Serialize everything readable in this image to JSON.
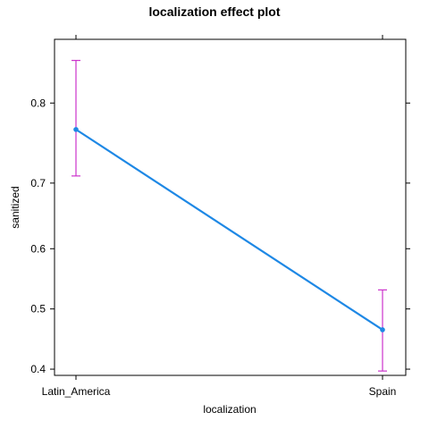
{
  "chart_data": {
    "type": "line",
    "title": "localization effect plot",
    "xlabel": "localization",
    "ylabel": "sanitized",
    "categories": [
      "Latin_America",
      "Spain"
    ],
    "series": [
      {
        "values": [
          0.77,
          0.465
        ],
        "lower": [
          0.71,
          0.397
        ],
        "upper": [
          0.842,
          0.532
        ]
      }
    ],
    "y_ticks": [
      0.4,
      0.5,
      0.6,
      0.7,
      0.8
    ],
    "y_tick_labels": [
      "0.4",
      "0.5",
      "0.6",
      "0.7",
      "0.8"
    ],
    "y_scale": "logit",
    "ylim": [
      0.39,
      0.86
    ],
    "grid": false,
    "colors": {
      "line": "#1E88E5",
      "error_bar": "#CC33CC",
      "frame": "#000000"
    }
  }
}
